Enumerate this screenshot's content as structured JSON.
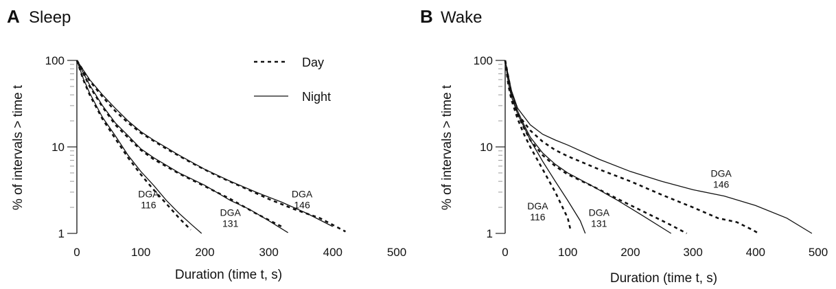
{
  "chart_data": [
    {
      "type": "line",
      "panel_letter": "A",
      "title": "Sleep",
      "xlabel": "Duration (time t, s)",
      "ylabel": "% of intervals > time t",
      "xlim": [
        0,
        500
      ],
      "ylim": [
        1,
        100
      ],
      "yscale": "log",
      "grid": false,
      "x_ticks": [
        "0",
        "100",
        "200",
        "300",
        "400",
        "500"
      ],
      "y_ticks": [
        "1",
        "10",
        "100"
      ],
      "legend": {
        "position": "top-center",
        "entries": [
          {
            "label": "Day",
            "style": "dashed"
          },
          {
            "label": "Night",
            "style": "solid"
          }
        ]
      },
      "annotations": [
        {
          "line1": "DGA",
          "line2": "116",
          "at": [
            112,
            2.6
          ]
        },
        {
          "line1": "DGA",
          "line2": "131",
          "at": [
            240,
            1.6
          ]
        },
        {
          "line1": "DGA",
          "line2": "146",
          "at": [
            352,
            2.6
          ]
        }
      ],
      "series": [
        {
          "group": "DGA 116",
          "period": "Night",
          "style": "solid",
          "x": [
            0,
            10,
            20,
            40,
            60,
            80,
            100,
            120,
            140,
            160,
            180,
            195
          ],
          "y": [
            100,
            62,
            42,
            22,
            13.5,
            8,
            5.2,
            3.6,
            2.4,
            1.7,
            1.25,
            1.0
          ]
        },
        {
          "group": "DGA 116",
          "period": "Day",
          "style": "dashed",
          "x": [
            0,
            10,
            20,
            40,
            60,
            80,
            100,
            120,
            140,
            160,
            178
          ],
          "y": [
            100,
            60,
            40,
            21,
            12.5,
            7.5,
            4.8,
            3.2,
            2.2,
            1.5,
            1.1
          ]
        },
        {
          "group": "DGA 131",
          "period": "Night",
          "style": "solid",
          "x": [
            0,
            20,
            40,
            60,
            80,
            100,
            120,
            160,
            200,
            240,
            270,
            300,
            330
          ],
          "y": [
            100,
            52,
            30,
            19,
            13.5,
            9.5,
            7.5,
            5.0,
            3.6,
            2.4,
            1.9,
            1.4,
            1.02
          ]
        },
        {
          "group": "DGA 131",
          "period": "Day",
          "style": "dashed",
          "x": [
            0,
            20,
            40,
            60,
            80,
            100,
            120,
            160,
            200,
            240,
            280,
            320
          ],
          "y": [
            100,
            50,
            29,
            18,
            12.8,
            9.2,
            7.2,
            4.9,
            3.5,
            2.5,
            1.7,
            1.2
          ]
        },
        {
          "group": "DGA 146",
          "period": "Night",
          "style": "solid",
          "x": [
            0,
            20,
            40,
            60,
            80,
            100,
            120,
            140,
            160,
            200,
            240,
            280,
            320,
            360,
            400
          ],
          "y": [
            100,
            60,
            40,
            28,
            20,
            15,
            12,
            9.8,
            8.0,
            5.5,
            4.0,
            3.0,
            2.3,
            1.7,
            1.2
          ]
        },
        {
          "group": "DGA 146",
          "period": "Day",
          "style": "dashed",
          "x": [
            0,
            20,
            40,
            60,
            80,
            100,
            140,
            180,
            220,
            260,
            300,
            340,
            380,
            420
          ],
          "y": [
            100,
            58,
            38,
            26,
            19,
            14.5,
            9.5,
            6.5,
            4.6,
            3.4,
            2.5,
            1.9,
            1.5,
            1.05
          ]
        }
      ]
    },
    {
      "type": "line",
      "panel_letter": "B",
      "title": "Wake",
      "xlabel": "Duration (time t, s)",
      "ylabel": "% of intervals > time t",
      "xlim": [
        0,
        500
      ],
      "ylim": [
        1,
        100
      ],
      "yscale": "log",
      "grid": false,
      "x_ticks": [
        "0",
        "100",
        "200",
        "300",
        "400",
        "500"
      ],
      "y_ticks": [
        "1",
        "10",
        "100"
      ],
      "annotations": [
        {
          "line1": "DGA",
          "line2": "116",
          "at": [
            52,
            1.9
          ]
        },
        {
          "line1": "DGA",
          "line2": "131",
          "at": [
            150,
            1.6
          ]
        },
        {
          "line1": "DGA",
          "line2": "146",
          "at": [
            345,
            4.5
          ]
        }
      ],
      "series": [
        {
          "group": "DGA 116",
          "period": "Night",
          "style": "solid",
          "x": [
            0,
            5,
            10,
            20,
            30,
            40,
            60,
            80,
            100,
            120,
            128
          ],
          "y": [
            100,
            55,
            38,
            24,
            17,
            12,
            6.8,
            4.0,
            2.4,
            1.4,
            1.0
          ]
        },
        {
          "group": "DGA 116",
          "period": "Day",
          "style": "dashed",
          "x": [
            0,
            5,
            10,
            20,
            30,
            40,
            60,
            80,
            100,
            105
          ],
          "y": [
            100,
            52,
            35,
            21,
            14,
            10,
            5.5,
            3.0,
            1.5,
            1.05
          ]
        },
        {
          "group": "DGA 131",
          "period": "Night",
          "style": "solid",
          "x": [
            0,
            10,
            20,
            30,
            40,
            60,
            80,
            100,
            140,
            180,
            220,
            265
          ],
          "y": [
            100,
            42,
            26,
            18,
            13,
            8.5,
            6.3,
            5.0,
            3.5,
            2.4,
            1.6,
            1.0
          ]
        },
        {
          "group": "DGA 131",
          "period": "Day",
          "style": "dashed",
          "x": [
            0,
            10,
            20,
            30,
            40,
            60,
            80,
            100,
            140,
            180,
            220,
            260,
            290
          ],
          "y": [
            100,
            40,
            24,
            16.5,
            12,
            8.0,
            6.0,
            4.8,
            3.5,
            2.5,
            1.8,
            1.3,
            1.0
          ]
        },
        {
          "group": "DGA 146",
          "period": "Night",
          "style": "solid",
          "x": [
            0,
            10,
            20,
            40,
            60,
            80,
            100,
            150,
            200,
            250,
            300,
            350,
            400,
            450,
            490
          ],
          "y": [
            100,
            45,
            28,
            18,
            14,
            12,
            10.5,
            7.2,
            5.2,
            4.0,
            3.2,
            2.7,
            2.1,
            1.5,
            1.0
          ]
        },
        {
          "group": "DGA 146",
          "period": "Day",
          "style": "dashed",
          "x": [
            0,
            10,
            20,
            40,
            60,
            80,
            100,
            150,
            200,
            250,
            300,
            340,
            370,
            395,
            405
          ],
          "y": [
            100,
            42,
            24,
            15.5,
            11.5,
            9.2,
            7.8,
            5.5,
            4.0,
            2.8,
            2.0,
            1.5,
            1.35,
            1.1,
            1.0
          ]
        }
      ]
    }
  ]
}
